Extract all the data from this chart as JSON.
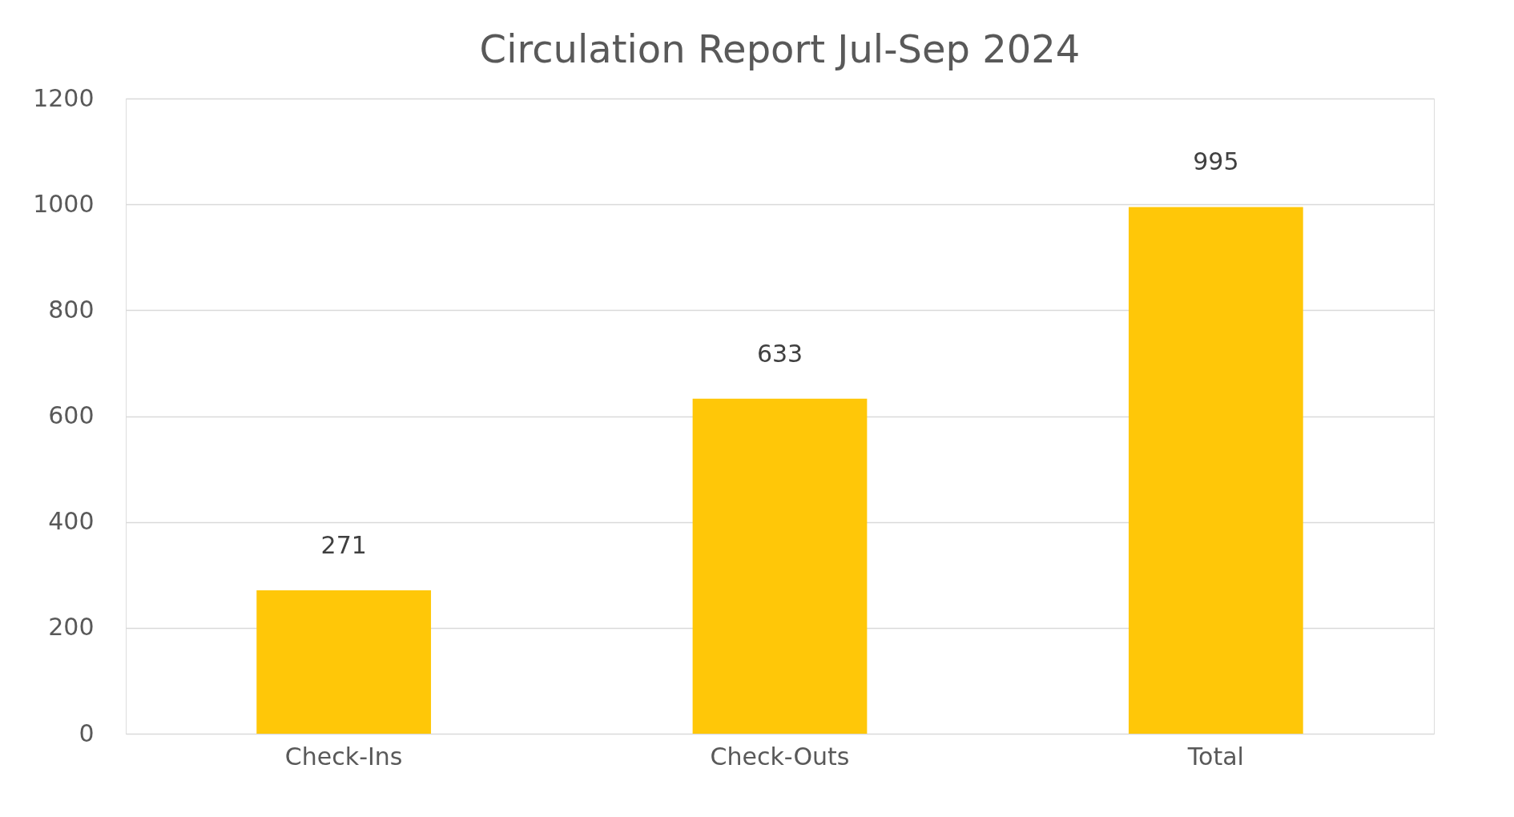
{
  "chart_data": {
    "type": "bar",
    "title": "Circulation Report Jul-Sep 2024",
    "categories": [
      "Check-Ins",
      "Check-Outs",
      "Total"
    ],
    "values": [
      271,
      633,
      995
    ],
    "color": "#ffc708",
    "ylim": [
      0,
      1200
    ],
    "yticks": [
      0,
      200,
      400,
      600,
      800,
      1000,
      1200
    ],
    "grid": "y",
    "data_labels": true
  }
}
